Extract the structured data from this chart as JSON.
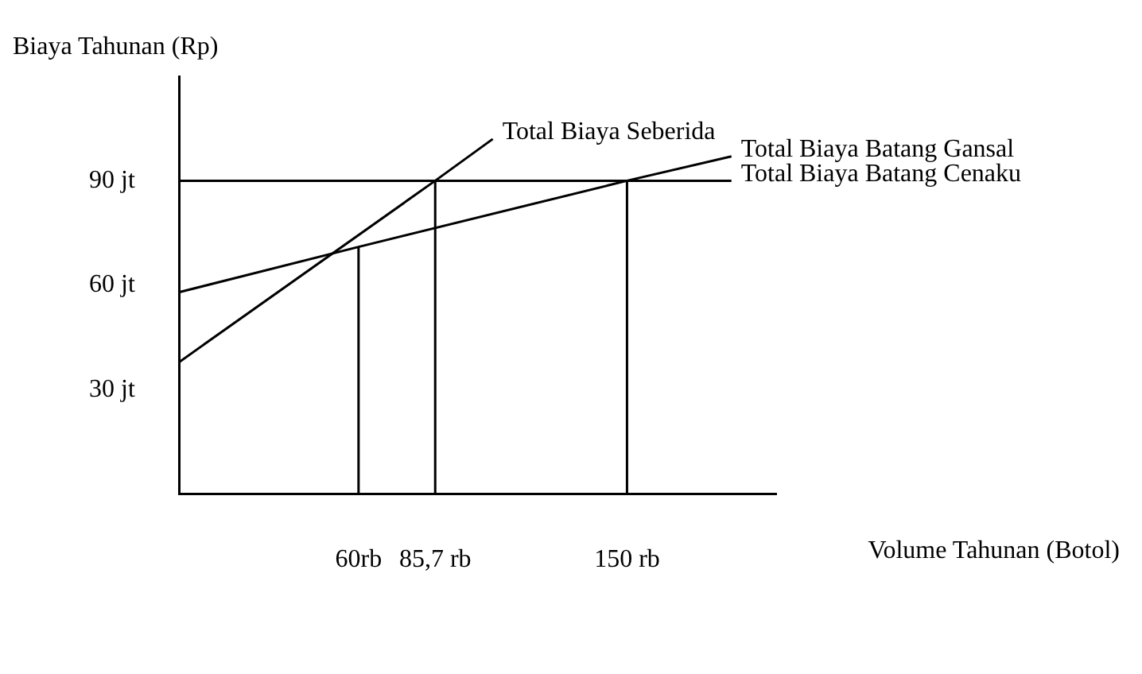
{
  "chart_data": {
    "type": "line",
    "xlabel": "Volume Tahunan (Botol)",
    "ylabel": "Biaya Tahunan (Rp)",
    "xlim": [
      0,
      200
    ],
    "xticks": [
      {
        "value": 60,
        "label": "60rb"
      },
      {
        "value": 85.7,
        "label": "85,7 rb"
      },
      {
        "value": 150,
        "label": "150 rb"
      }
    ],
    "ylim": [
      0,
      120
    ],
    "yticks": [
      {
        "value": 30,
        "label": "30 jt"
      },
      {
        "value": 60,
        "label": "60 jt"
      },
      {
        "value": 90,
        "label": "90 jt"
      }
    ],
    "grid": false,
    "legend": false,
    "marker": "none",
    "line_style": "solid",
    "series": [
      {
        "name": "Total Biaya Seberida",
        "color": "#000000",
        "x": [
          0,
          85.7,
          105
        ],
        "values": [
          38,
          90,
          102
        ]
      },
      {
        "name": "Total Biaya Batang Gansal",
        "color": "#000000",
        "x": [
          0,
          60,
          150,
          185
        ],
        "values": [
          58,
          71,
          90,
          97
        ]
      },
      {
        "name": "Total Biaya Batang Cenaku",
        "color": "#000000",
        "x": [
          0,
          185
        ],
        "values": [
          90,
          90
        ]
      },
      {
        "color": "#000000",
        "x": [
          60,
          60
        ],
        "values": [
          0,
          71
        ]
      },
      {
        "color": "#000000",
        "x": [
          85.7,
          85.7
        ],
        "values": [
          0,
          90
        ]
      },
      {
        "color": "#000000",
        "x": [
          150,
          150
        ],
        "values": [
          0,
          90
        ]
      }
    ]
  }
}
